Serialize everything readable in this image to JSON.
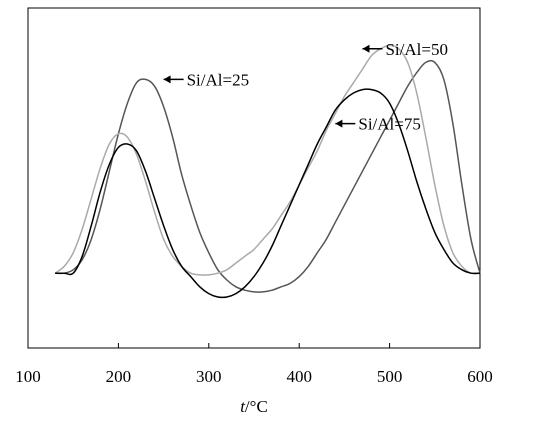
{
  "chart_data": {
    "type": "line",
    "xlabel_var": "t",
    "xlabel_unit": "/°C",
    "ylabel": "",
    "xlim": [
      100,
      600
    ],
    "ylim": [
      0,
      1
    ],
    "xticks": [
      100,
      200,
      300,
      400,
      500,
      600
    ],
    "grid": false,
    "legend": "none",
    "series": [
      {
        "key": "si25",
        "color": "#555555",
        "x": [
          130,
          140,
          150,
          160,
          170,
          180,
          190,
          200,
          210,
          220,
          230,
          240,
          250,
          260,
          270,
          280,
          290,
          300,
          310,
          320,
          330,
          340,
          350,
          360,
          370,
          380,
          390,
          400,
          410,
          420,
          430,
          440,
          450,
          460,
          470,
          480,
          490,
          500,
          510,
          520,
          530,
          540,
          550,
          560,
          570,
          580,
          590,
          600
        ],
        "values": [
          0.22,
          0.22,
          0.23,
          0.26,
          0.32,
          0.41,
          0.52,
          0.63,
          0.72,
          0.78,
          0.79,
          0.77,
          0.71,
          0.62,
          0.51,
          0.42,
          0.34,
          0.28,
          0.23,
          0.2,
          0.18,
          0.17,
          0.165,
          0.165,
          0.17,
          0.18,
          0.19,
          0.21,
          0.24,
          0.28,
          0.32,
          0.37,
          0.42,
          0.47,
          0.52,
          0.57,
          0.62,
          0.67,
          0.72,
          0.77,
          0.81,
          0.84,
          0.84,
          0.79,
          0.66,
          0.48,
          0.32,
          0.22
        ]
      },
      {
        "key": "si50",
        "color": "#aaaaaa",
        "x": [
          130,
          140,
          150,
          160,
          170,
          180,
          190,
          200,
          210,
          220,
          230,
          240,
          250,
          260,
          270,
          280,
          290,
          300,
          310,
          320,
          330,
          340,
          350,
          360,
          370,
          380,
          390,
          400,
          410,
          420,
          430,
          440,
          450,
          460,
          470,
          480,
          490,
          500,
          510,
          520,
          530,
          540,
          550,
          560,
          570,
          580,
          590,
          600
        ],
        "values": [
          0.22,
          0.24,
          0.28,
          0.35,
          0.44,
          0.53,
          0.6,
          0.63,
          0.62,
          0.57,
          0.49,
          0.4,
          0.32,
          0.27,
          0.24,
          0.22,
          0.215,
          0.215,
          0.22,
          0.23,
          0.25,
          0.27,
          0.29,
          0.32,
          0.35,
          0.39,
          0.43,
          0.48,
          0.53,
          0.58,
          0.64,
          0.69,
          0.74,
          0.78,
          0.82,
          0.86,
          0.88,
          0.89,
          0.88,
          0.84,
          0.75,
          0.62,
          0.48,
          0.36,
          0.28,
          0.24,
          0.22,
          0.22
        ]
      },
      {
        "key": "si75",
        "color": "#000000",
        "x": [
          130,
          140,
          150,
          160,
          170,
          180,
          190,
          200,
          210,
          220,
          230,
          240,
          250,
          260,
          270,
          280,
          290,
          300,
          310,
          320,
          330,
          340,
          350,
          360,
          370,
          380,
          390,
          400,
          410,
          420,
          430,
          440,
          450,
          460,
          470,
          480,
          490,
          500,
          510,
          520,
          530,
          540,
          550,
          560,
          570,
          580,
          590,
          600
        ],
        "values": [
          0.22,
          0.22,
          0.22,
          0.27,
          0.36,
          0.46,
          0.54,
          0.59,
          0.6,
          0.58,
          0.52,
          0.44,
          0.36,
          0.29,
          0.24,
          0.21,
          0.18,
          0.16,
          0.15,
          0.15,
          0.16,
          0.18,
          0.21,
          0.25,
          0.3,
          0.36,
          0.42,
          0.48,
          0.54,
          0.6,
          0.65,
          0.7,
          0.73,
          0.75,
          0.76,
          0.76,
          0.75,
          0.72,
          0.66,
          0.58,
          0.49,
          0.41,
          0.34,
          0.29,
          0.25,
          0.23,
          0.22,
          0.22
        ]
      }
    ],
    "annotations": [
      {
        "key": "a25",
        "label": "Si/Al=25",
        "x": 250,
        "y": 0.79,
        "series": "si25",
        "arrow": "left"
      },
      {
        "key": "a50",
        "label": "Si/Al=50",
        "x": 470,
        "y": 0.88,
        "series": "si50",
        "arrow": "left"
      },
      {
        "key": "a75",
        "label": "Si/Al=75",
        "x": 440,
        "y": 0.66,
        "series": "si75",
        "arrow": "left"
      }
    ]
  }
}
